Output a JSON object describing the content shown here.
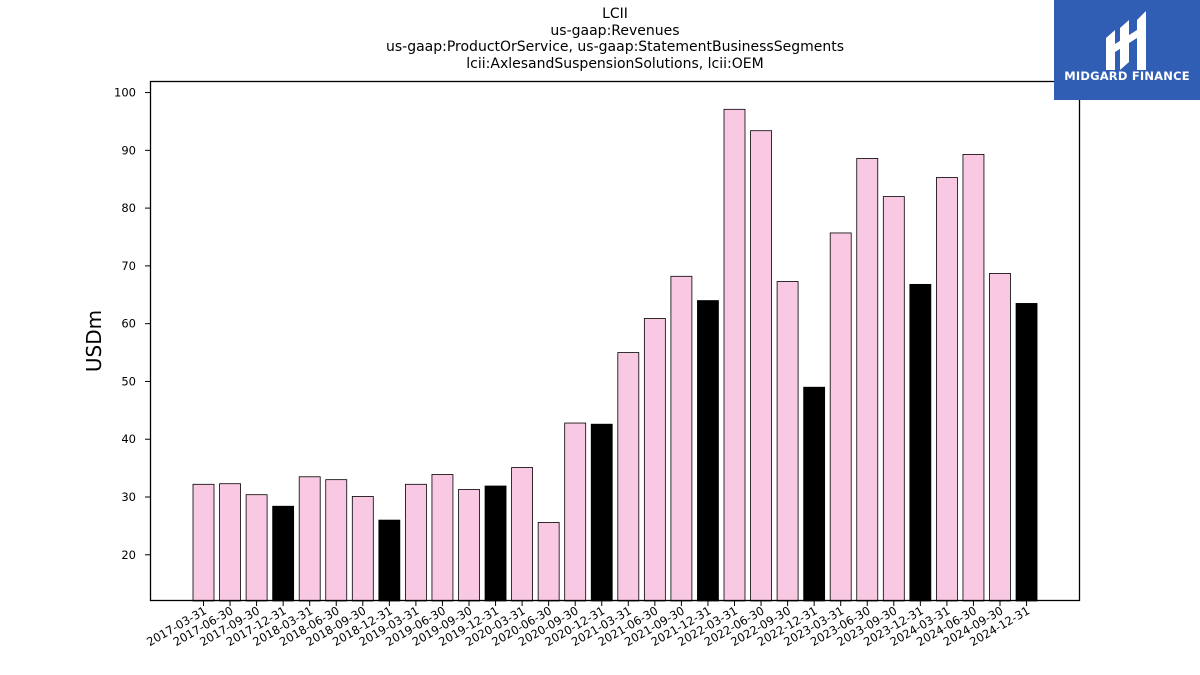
{
  "header": {
    "title_lines": [
      "LCII",
      "us-gaap:Revenues",
      "us-gaap:ProductOrService, us-gaap:StatementBusinessSegments",
      "lcii:AxlesandSuspensionSolutions, lcii:OEM"
    ]
  },
  "logo": {
    "text": "MIDGARD FINANCE",
    "background": "#2f5eb4"
  },
  "chart_data": {
    "type": "bar",
    "title": "LCII",
    "subtitle_lines": [
      "us-gaap:Revenues",
      "us-gaap:ProductOrService, us-gaap:StatementBusinessSegments",
      "lcii:AxlesandSuspensionSolutions, lcii:OEM"
    ],
    "xlabel": "",
    "ylabel": "USDm",
    "ylim": [
      12,
      102
    ],
    "yticks": [
      20,
      30,
      40,
      50,
      60,
      70,
      80,
      90,
      100
    ],
    "grid": false,
    "colors": {
      "quarter": "#f9c9e3",
      "year_end": "#000000",
      "edge": "#000000"
    },
    "categories": [
      "2017-03-31",
      "2017-06-30",
      "2017-09-30",
      "2017-12-31",
      "2018-03-31",
      "2018-06-30",
      "2018-09-30",
      "2018-12-31",
      "2019-03-31",
      "2019-06-30",
      "2019-09-30",
      "2019-12-31",
      "2020-03-31",
      "2020-06-30",
      "2020-09-30",
      "2020-12-31",
      "2021-03-31",
      "2021-06-30",
      "2021-09-30",
      "2021-12-31",
      "2022-03-31",
      "2022-06-30",
      "2022-09-30",
      "2022-12-31",
      "2023-03-31",
      "2023-06-30",
      "2023-09-30",
      "2023-12-31",
      "2024-03-31",
      "2024-06-30",
      "2024-09-30",
      "2024-12-31"
    ],
    "values": [
      32.2,
      32.3,
      30.4,
      28.4,
      33.5,
      33.0,
      30.1,
      26.0,
      32.2,
      33.9,
      31.3,
      31.9,
      35.1,
      25.6,
      42.8,
      42.6,
      55.0,
      60.9,
      68.2,
      64.0,
      97.1,
      93.4,
      67.3,
      49.0,
      75.7,
      88.6,
      82.0,
      66.8,
      85.3,
      89.3,
      68.7,
      63.5
    ]
  }
}
